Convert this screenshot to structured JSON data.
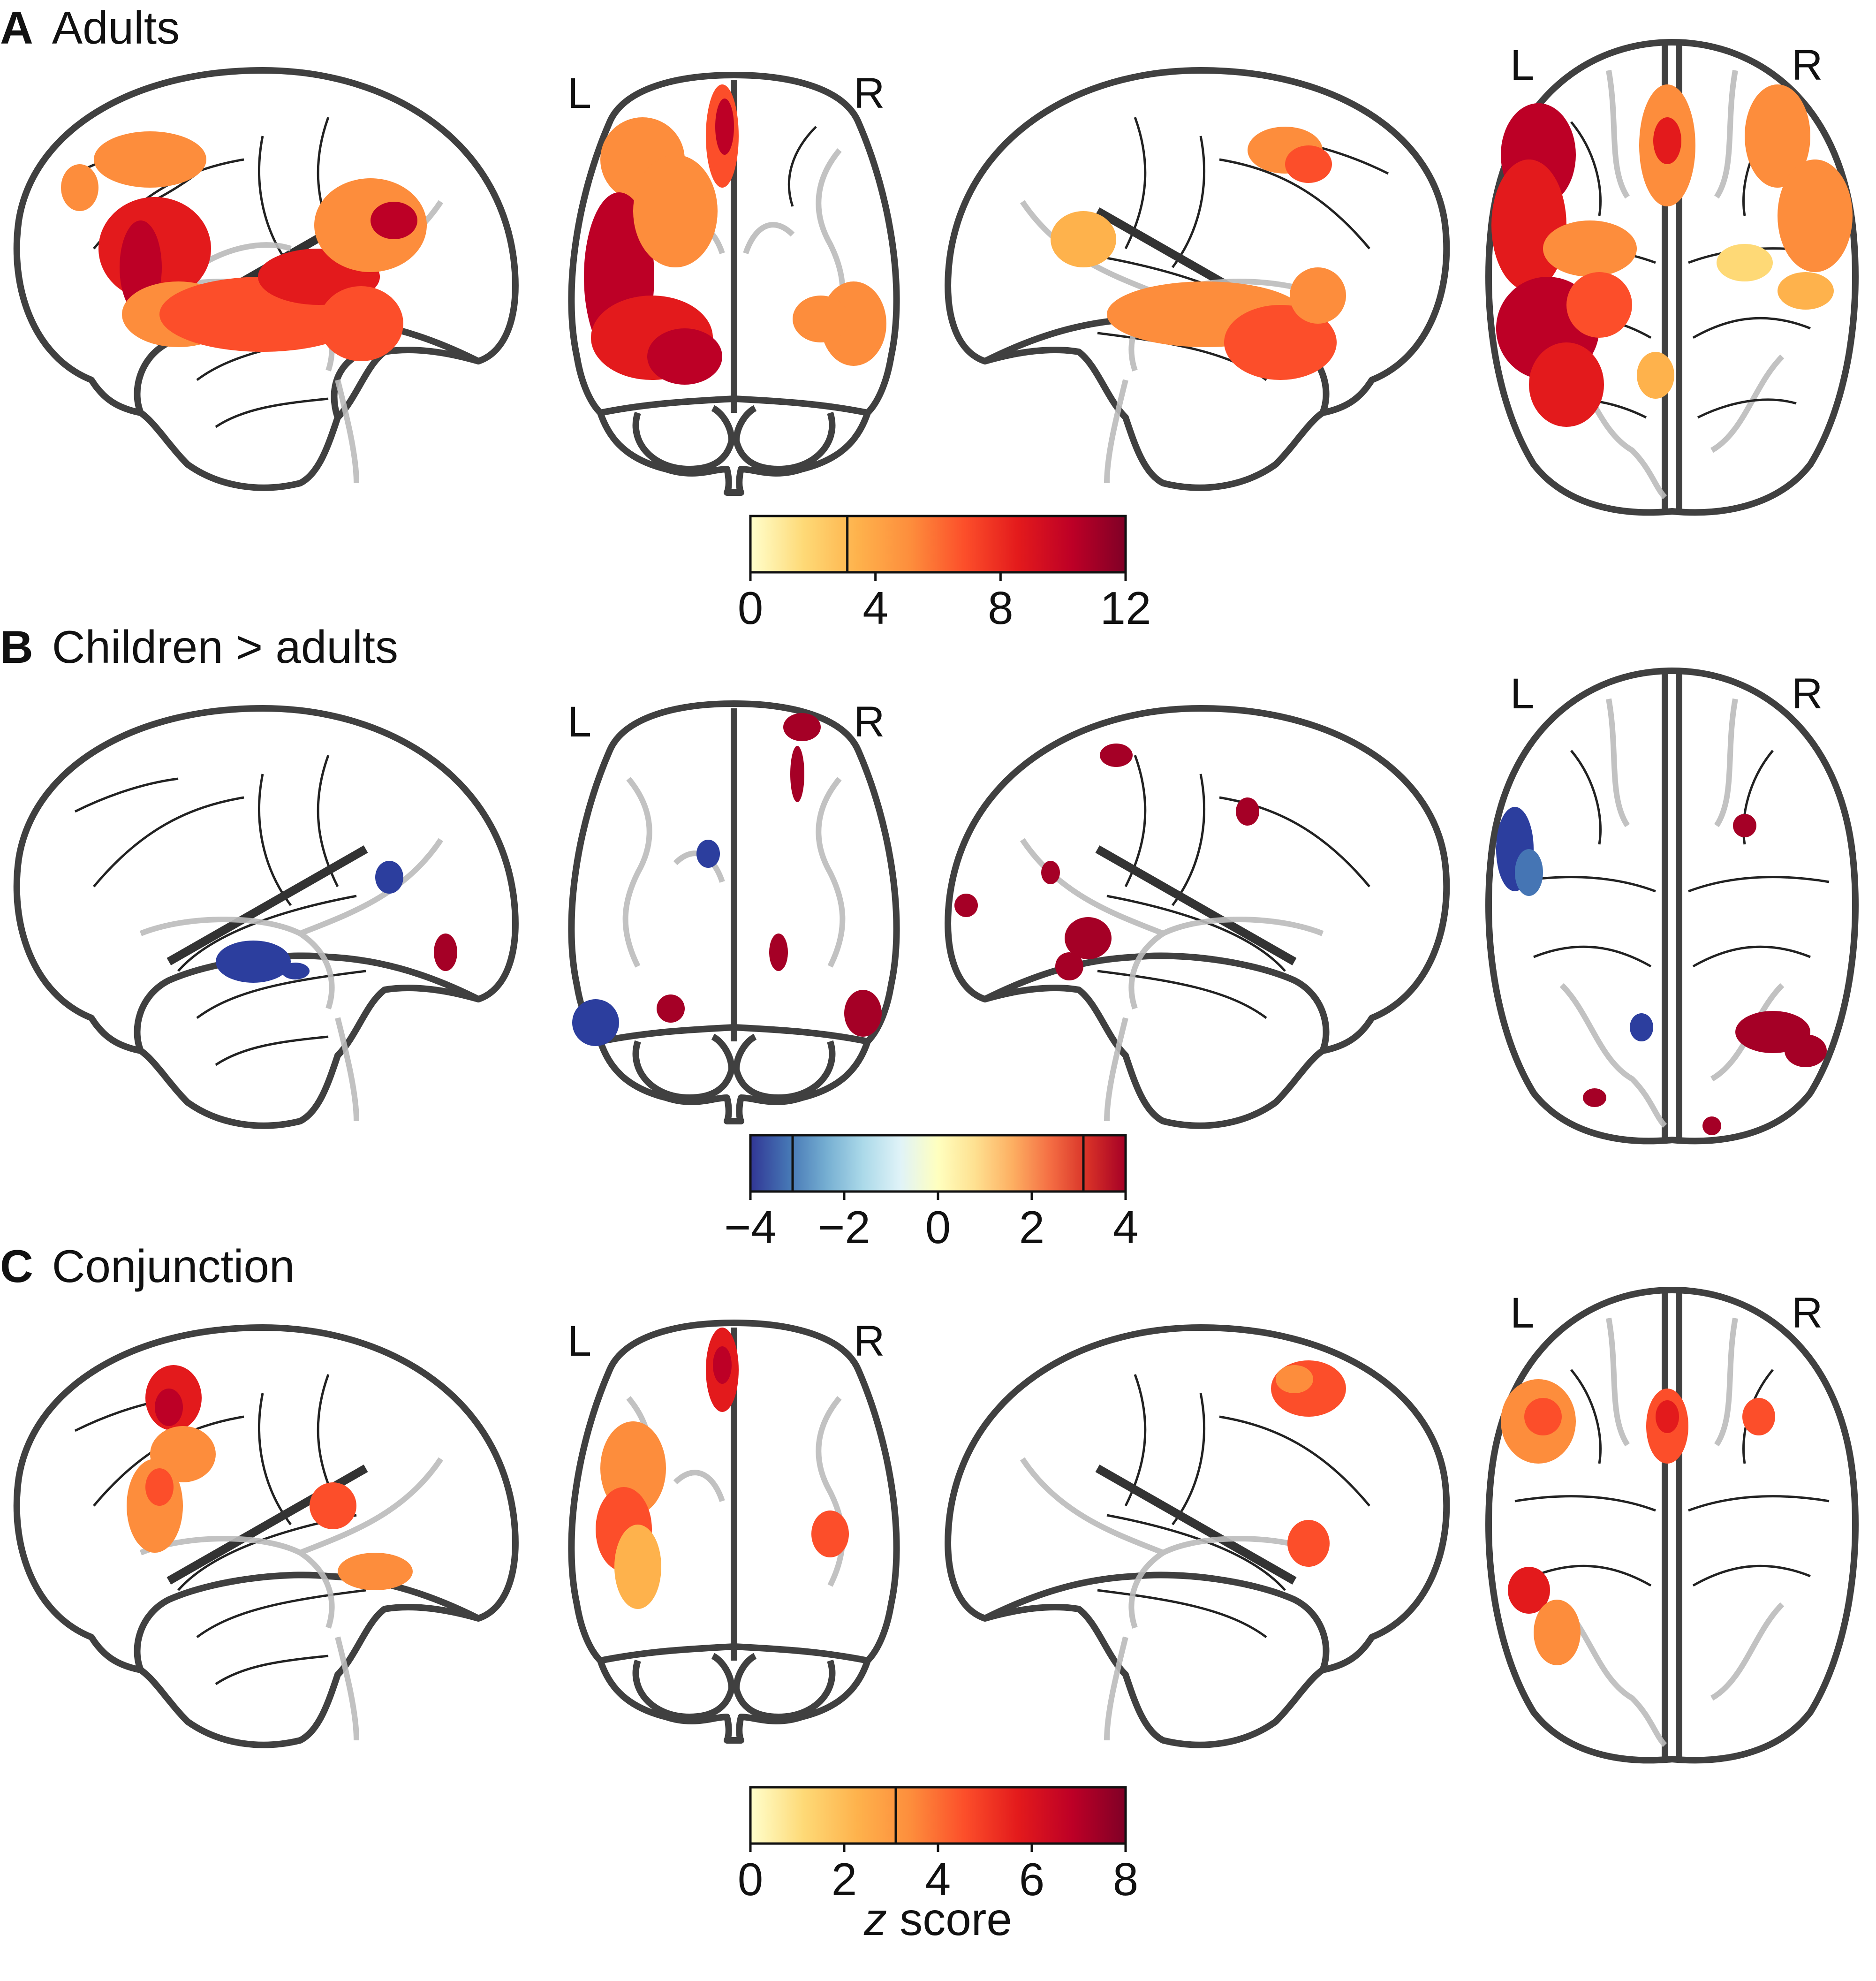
{
  "panels": [
    {
      "letter": "A",
      "title": "Adults",
      "hemisphere_labels": [
        "L",
        "R"
      ],
      "colorbar": {
        "colormap": "hot",
        "colors": [
          "#ffffcc",
          "#fed976",
          "#feb24c",
          "#fd8d3c",
          "#fc4e2a",
          "#e31a1c",
          "#bd0026",
          "#800026"
        ],
        "min": 0,
        "max": 12,
        "threshold": 3.1,
        "ticks": [
          "0",
          "4",
          "8",
          "12"
        ]
      }
    },
    {
      "letter": "B",
      "title": "Children > adults",
      "hemisphere_labels": [
        "L",
        "R"
      ],
      "colorbar": {
        "colormap": "diverging",
        "colors": [
          "#313695",
          "#4575b4",
          "#74add1",
          "#abd9e9",
          "#e0f3f8",
          "#ffffbf",
          "#fee090",
          "#fdae61",
          "#f46d43",
          "#d73027",
          "#a50026"
        ],
        "min": -4,
        "max": 4,
        "threshold": 3.1,
        "ticks": [
          "−4",
          "−2",
          "0",
          "2",
          "4"
        ]
      }
    },
    {
      "letter": "C",
      "title": "Conjunction",
      "hemisphere_labels": [
        "L",
        "R"
      ],
      "colorbar": {
        "colormap": "hot",
        "colors": [
          "#ffffcc",
          "#fed976",
          "#feb24c",
          "#fd8d3c",
          "#fc4e2a",
          "#e31a1c",
          "#bd0026",
          "#800026"
        ],
        "min": 0,
        "max": 8,
        "threshold": 3.1,
        "ticks": [
          "0",
          "2",
          "4",
          "6",
          "8"
        ],
        "label_italic": "z",
        "label_rest": " score"
      }
    }
  ],
  "colors": {
    "outline": "#404040",
    "sulci": "#222222",
    "gyri_light": "#bbbbbb"
  }
}
